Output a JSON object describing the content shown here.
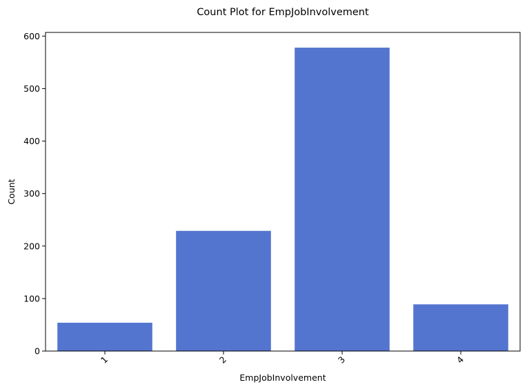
{
  "chart_data": {
    "type": "bar",
    "title": "Count Plot for EmpJobInvolvement",
    "xlabel": "EmpJobInvolvement",
    "ylabel": "Count",
    "categories": [
      "1",
      "2",
      "3",
      "4"
    ],
    "values": [
      54,
      229,
      578,
      89
    ],
    "ylim": [
      0,
      607
    ],
    "yticks": [
      0,
      100,
      200,
      300,
      400,
      500,
      600
    ],
    "bar_color": "#5475cf",
    "grid": false,
    "legend": "none"
  }
}
